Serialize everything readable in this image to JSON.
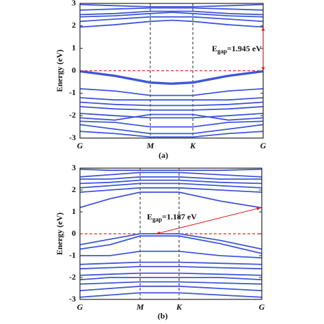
{
  "chart_data": [
    {
      "type": "line",
      "caption": "(a)",
      "ylabel": "Energy (eV)",
      "x": [
        0,
        0.19,
        0.384,
        0.5,
        0.616,
        0.81,
        1
      ],
      "xlim": [
        0,
        1
      ],
      "xticks": [
        {
          "value": 0,
          "label": "G"
        },
        {
          "value": 0.384,
          "label": "M"
        },
        {
          "value": 0.616,
          "label": "K"
        },
        {
          "value": 1,
          "label": "G"
        }
      ],
      "ylim": [
        -3,
        3
      ],
      "yticks": [
        -3,
        -2,
        -1,
        0,
        1,
        2,
        3
      ],
      "color": "#3d55d9",
      "fermi_level": 0,
      "fermi_color": "#e02020",
      "series": [
        {
          "values": [
            2.95,
            2.9,
            2.85,
            2.85,
            2.85,
            2.9,
            2.95
          ]
        },
        {
          "values": [
            2.7,
            2.75,
            2.8,
            2.8,
            2.8,
            2.75,
            2.7
          ]
        },
        {
          "values": [
            2.5,
            2.55,
            2.65,
            2.65,
            2.65,
            2.55,
            2.5
          ]
        },
        {
          "values": [
            2.4,
            2.45,
            2.55,
            2.6,
            2.55,
            2.45,
            2.4
          ]
        },
        {
          "values": [
            2.2,
            2.3,
            2.4,
            2.4,
            2.4,
            2.3,
            2.2
          ]
        },
        {
          "values": [
            1.945,
            2.05,
            2.2,
            2.25,
            2.2,
            2.05,
            1.945
          ]
        },
        {
          "values": [
            0,
            -0.2,
            -0.5,
            -0.55,
            -0.5,
            -0.2,
            0
          ]
        },
        {
          "values": [
            -0.05,
            -0.25,
            -0.55,
            -0.6,
            -0.55,
            -0.25,
            -0.05
          ]
        },
        {
          "values": [
            -0.8,
            -0.9,
            -1.1,
            -1.1,
            -1.1,
            -0.9,
            -0.8
          ]
        },
        {
          "values": [
            -1.2,
            -1.3,
            -1.3,
            -1.3,
            -1.3,
            -1.3,
            -1.2
          ]
        },
        {
          "values": [
            -1.4,
            -1.5,
            -1.55,
            -1.55,
            -1.55,
            -1.5,
            -1.4
          ]
        },
        {
          "values": [
            -1.6,
            -1.7,
            -1.75,
            -1.75,
            -1.75,
            -1.7,
            -1.6
          ]
        },
        {
          "values": [
            -1.9,
            -2.0,
            -2.1,
            -2.1,
            -2.1,
            -2.0,
            -1.9
          ]
        },
        {
          "values": [
            -2.1,
            -2.2,
            -1.95,
            -1.95,
            -1.95,
            -2.2,
            -2.1
          ]
        },
        {
          "values": [
            -2.25,
            -2.3,
            -2.5,
            -2.5,
            -2.5,
            -2.3,
            -2.25
          ]
        },
        {
          "values": [
            -2.4,
            -2.6,
            -2.8,
            -2.8,
            -2.8,
            -2.6,
            -2.4
          ]
        },
        {
          "values": [
            -2.7,
            -2.8,
            -2.95,
            -2.95,
            -2.95,
            -2.8,
            -2.7
          ]
        }
      ],
      "gap": {
        "from": [
          1,
          0
        ],
        "to": [
          1,
          1.945
        ],
        "label": {
          "main": "E",
          "sub": "gap",
          "rest": "=1.945 eV"
        }
      }
    },
    {
      "type": "line",
      "caption": "(b)",
      "ylabel": "Energy (eV)",
      "x": [
        0,
        0.165,
        0.331,
        0.44,
        0.545,
        0.77,
        1
      ],
      "xlim": [
        0,
        1
      ],
      "xticks": [
        {
          "value": 0,
          "label": "G"
        },
        {
          "value": 0.331,
          "label": "M"
        },
        {
          "value": 0.545,
          "label": "K"
        },
        {
          "value": 1,
          "label": "G"
        }
      ],
      "ylim": [
        -3,
        3
      ],
      "yticks": [
        -3,
        -2,
        -1,
        0,
        1,
        2,
        3
      ],
      "color": "#3d55d9",
      "fermi_level": 0,
      "fermi_color": "#e02020",
      "series": [
        {
          "values": [
            2.95,
            2.9,
            2.9,
            2.9,
            2.9,
            2.9,
            2.95
          ]
        },
        {
          "values": [
            2.6,
            2.7,
            2.8,
            2.8,
            2.8,
            2.7,
            2.6
          ]
        },
        {
          "values": [
            2.5,
            2.5,
            2.6,
            2.6,
            2.6,
            2.5,
            2.5
          ]
        },
        {
          "values": [
            2.3,
            2.35,
            2.45,
            2.45,
            2.45,
            2.35,
            2.3
          ]
        },
        {
          "values": [
            2.1,
            2.2,
            2.3,
            2.3,
            2.3,
            2.2,
            2.1
          ]
        },
        {
          "values": [
            1.9,
            2.0,
            2.1,
            2.1,
            2.1,
            2.0,
            1.9
          ]
        },
        {
          "values": [
            1.2,
            1.6,
            1.9,
            1.9,
            1.9,
            1.5,
            1.187
          ]
        },
        {
          "values": [
            -0.5,
            -0.25,
            0,
            0,
            0,
            -0.3,
            -0.7
          ]
        },
        {
          "values": [
            -0.7,
            -0.5,
            -0.1,
            -0.1,
            -0.1,
            -0.45,
            -0.9
          ]
        },
        {
          "values": [
            -1.0,
            -1.0,
            -0.8,
            -0.8,
            -0.8,
            -1.0,
            -1.1
          ]
        },
        {
          "values": [
            -1.4,
            -1.35,
            -1.3,
            -1.3,
            -1.3,
            -1.35,
            -1.4
          ]
        },
        {
          "values": [
            -1.6,
            -1.55,
            -1.5,
            -1.5,
            -1.5,
            -1.55,
            -1.6
          ]
        },
        {
          "values": [
            -1.9,
            -1.85,
            -1.8,
            -1.8,
            -1.8,
            -1.85,
            -1.9
          ]
        },
        {
          "values": [
            -2.1,
            -2.0,
            -2.0,
            -2.0,
            -2.0,
            -2.0,
            -2.1
          ]
        },
        {
          "values": [
            -2.3,
            -2.25,
            -2.2,
            -2.2,
            -2.2,
            -2.25,
            -2.3
          ]
        },
        {
          "values": [
            -2.6,
            -2.5,
            -2.4,
            -2.4,
            -2.4,
            -2.5,
            -2.6
          ]
        },
        {
          "values": [
            -2.9,
            -2.8,
            -2.7,
            -2.7,
            -2.7,
            -2.8,
            -2.9
          ]
        }
      ],
      "gap": {
        "from": [
          0.42,
          0
        ],
        "to": [
          1,
          1.187
        ],
        "label": {
          "main": "E",
          "sub": "gap",
          "rest": "=1.187 eV"
        }
      }
    }
  ]
}
